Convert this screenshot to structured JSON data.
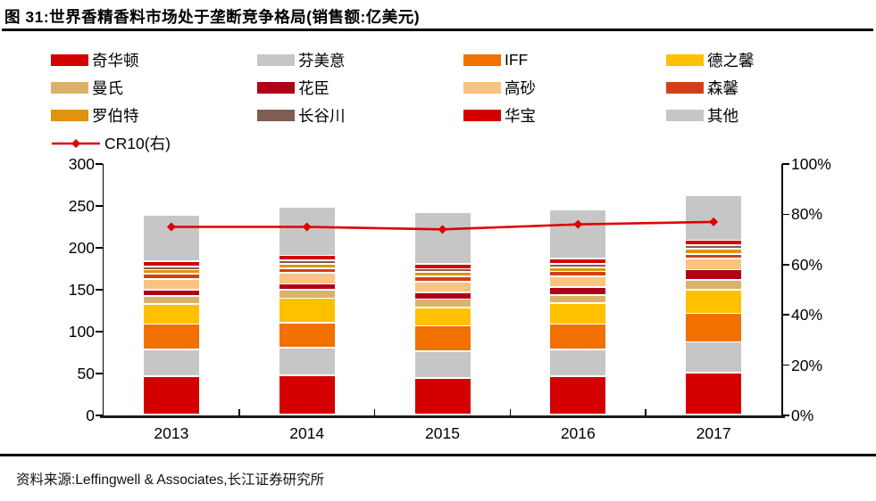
{
  "header": {
    "title": "图 31:世界香精香料市场处于垄断竞争格局(销售额:亿美元)"
  },
  "footer": {
    "source_note": "资料来源:Leffingwell & Associates,长江证券研究所"
  },
  "chart_data": {
    "type": "bar",
    "stacked": true,
    "grid": false,
    "legend_position": "top",
    "title": "图 31:世界香精香料市场处于垄断竞争格局(销售额:亿美元)",
    "categories": [
      "2013",
      "2014",
      "2015",
      "2016",
      "2017"
    ],
    "series": [
      {
        "name": "奇华顿",
        "color": "#d40000",
        "values": [
          46,
          47,
          44,
          46,
          50
        ]
      },
      {
        "name": "芬美意",
        "color": "#c6c6c6",
        "values": [
          32,
          33,
          32,
          32,
          37
        ]
      },
      {
        "name": "IFF",
        "color": "#f17000",
        "values": [
          30,
          30,
          30,
          30,
          34
        ]
      },
      {
        "name": "德之馨",
        "color": "#ffc000",
        "values": [
          24,
          29,
          22,
          25,
          28
        ]
      },
      {
        "name": "曼氏",
        "color": "#dbb269",
        "values": [
          10,
          10,
          10,
          10,
          12
        ]
      },
      {
        "name": "花臣",
        "color": "#b00018",
        "values": [
          7,
          7,
          8,
          9,
          12
        ]
      },
      {
        "name": "高砂",
        "color": "#f9c381",
        "values": [
          13,
          13,
          13,
          13,
          13
        ]
      },
      {
        "name": "森馨",
        "color": "#d24018",
        "values": [
          6,
          6,
          6,
          6,
          6
        ]
      },
      {
        "name": "罗伯特",
        "color": "#df930e",
        "values": [
          5,
          5,
          5,
          5,
          6
        ]
      },
      {
        "name": "长谷川",
        "color": "#7f5d52",
        "values": [
          4,
          4,
          4,
          4,
          4
        ]
      },
      {
        "name": "华宝",
        "color": "#d40000",
        "values": [
          6,
          6,
          6,
          6,
          6
        ]
      },
      {
        "name": "其他",
        "color": "#c6c6c6",
        "values": [
          55,
          58,
          61,
          59,
          54
        ]
      }
    ],
    "bar_totals": [
      238,
      248,
      241,
      245,
      262
    ],
    "line_series": {
      "name": "CR10(右)",
      "color": "#e00000",
      "axis": "right",
      "values": [
        75,
        75,
        74,
        76,
        77
      ]
    },
    "left_axis": {
      "min": 0,
      "max": 300,
      "step": 50,
      "labels": [
        "0",
        "50",
        "100",
        "150",
        "200",
        "250",
        "300"
      ]
    },
    "right_axis": {
      "min": 0,
      "max": 100,
      "step": 20,
      "labels": [
        "0%",
        "20%",
        "40%",
        "60%",
        "80%",
        "100%"
      ]
    }
  }
}
